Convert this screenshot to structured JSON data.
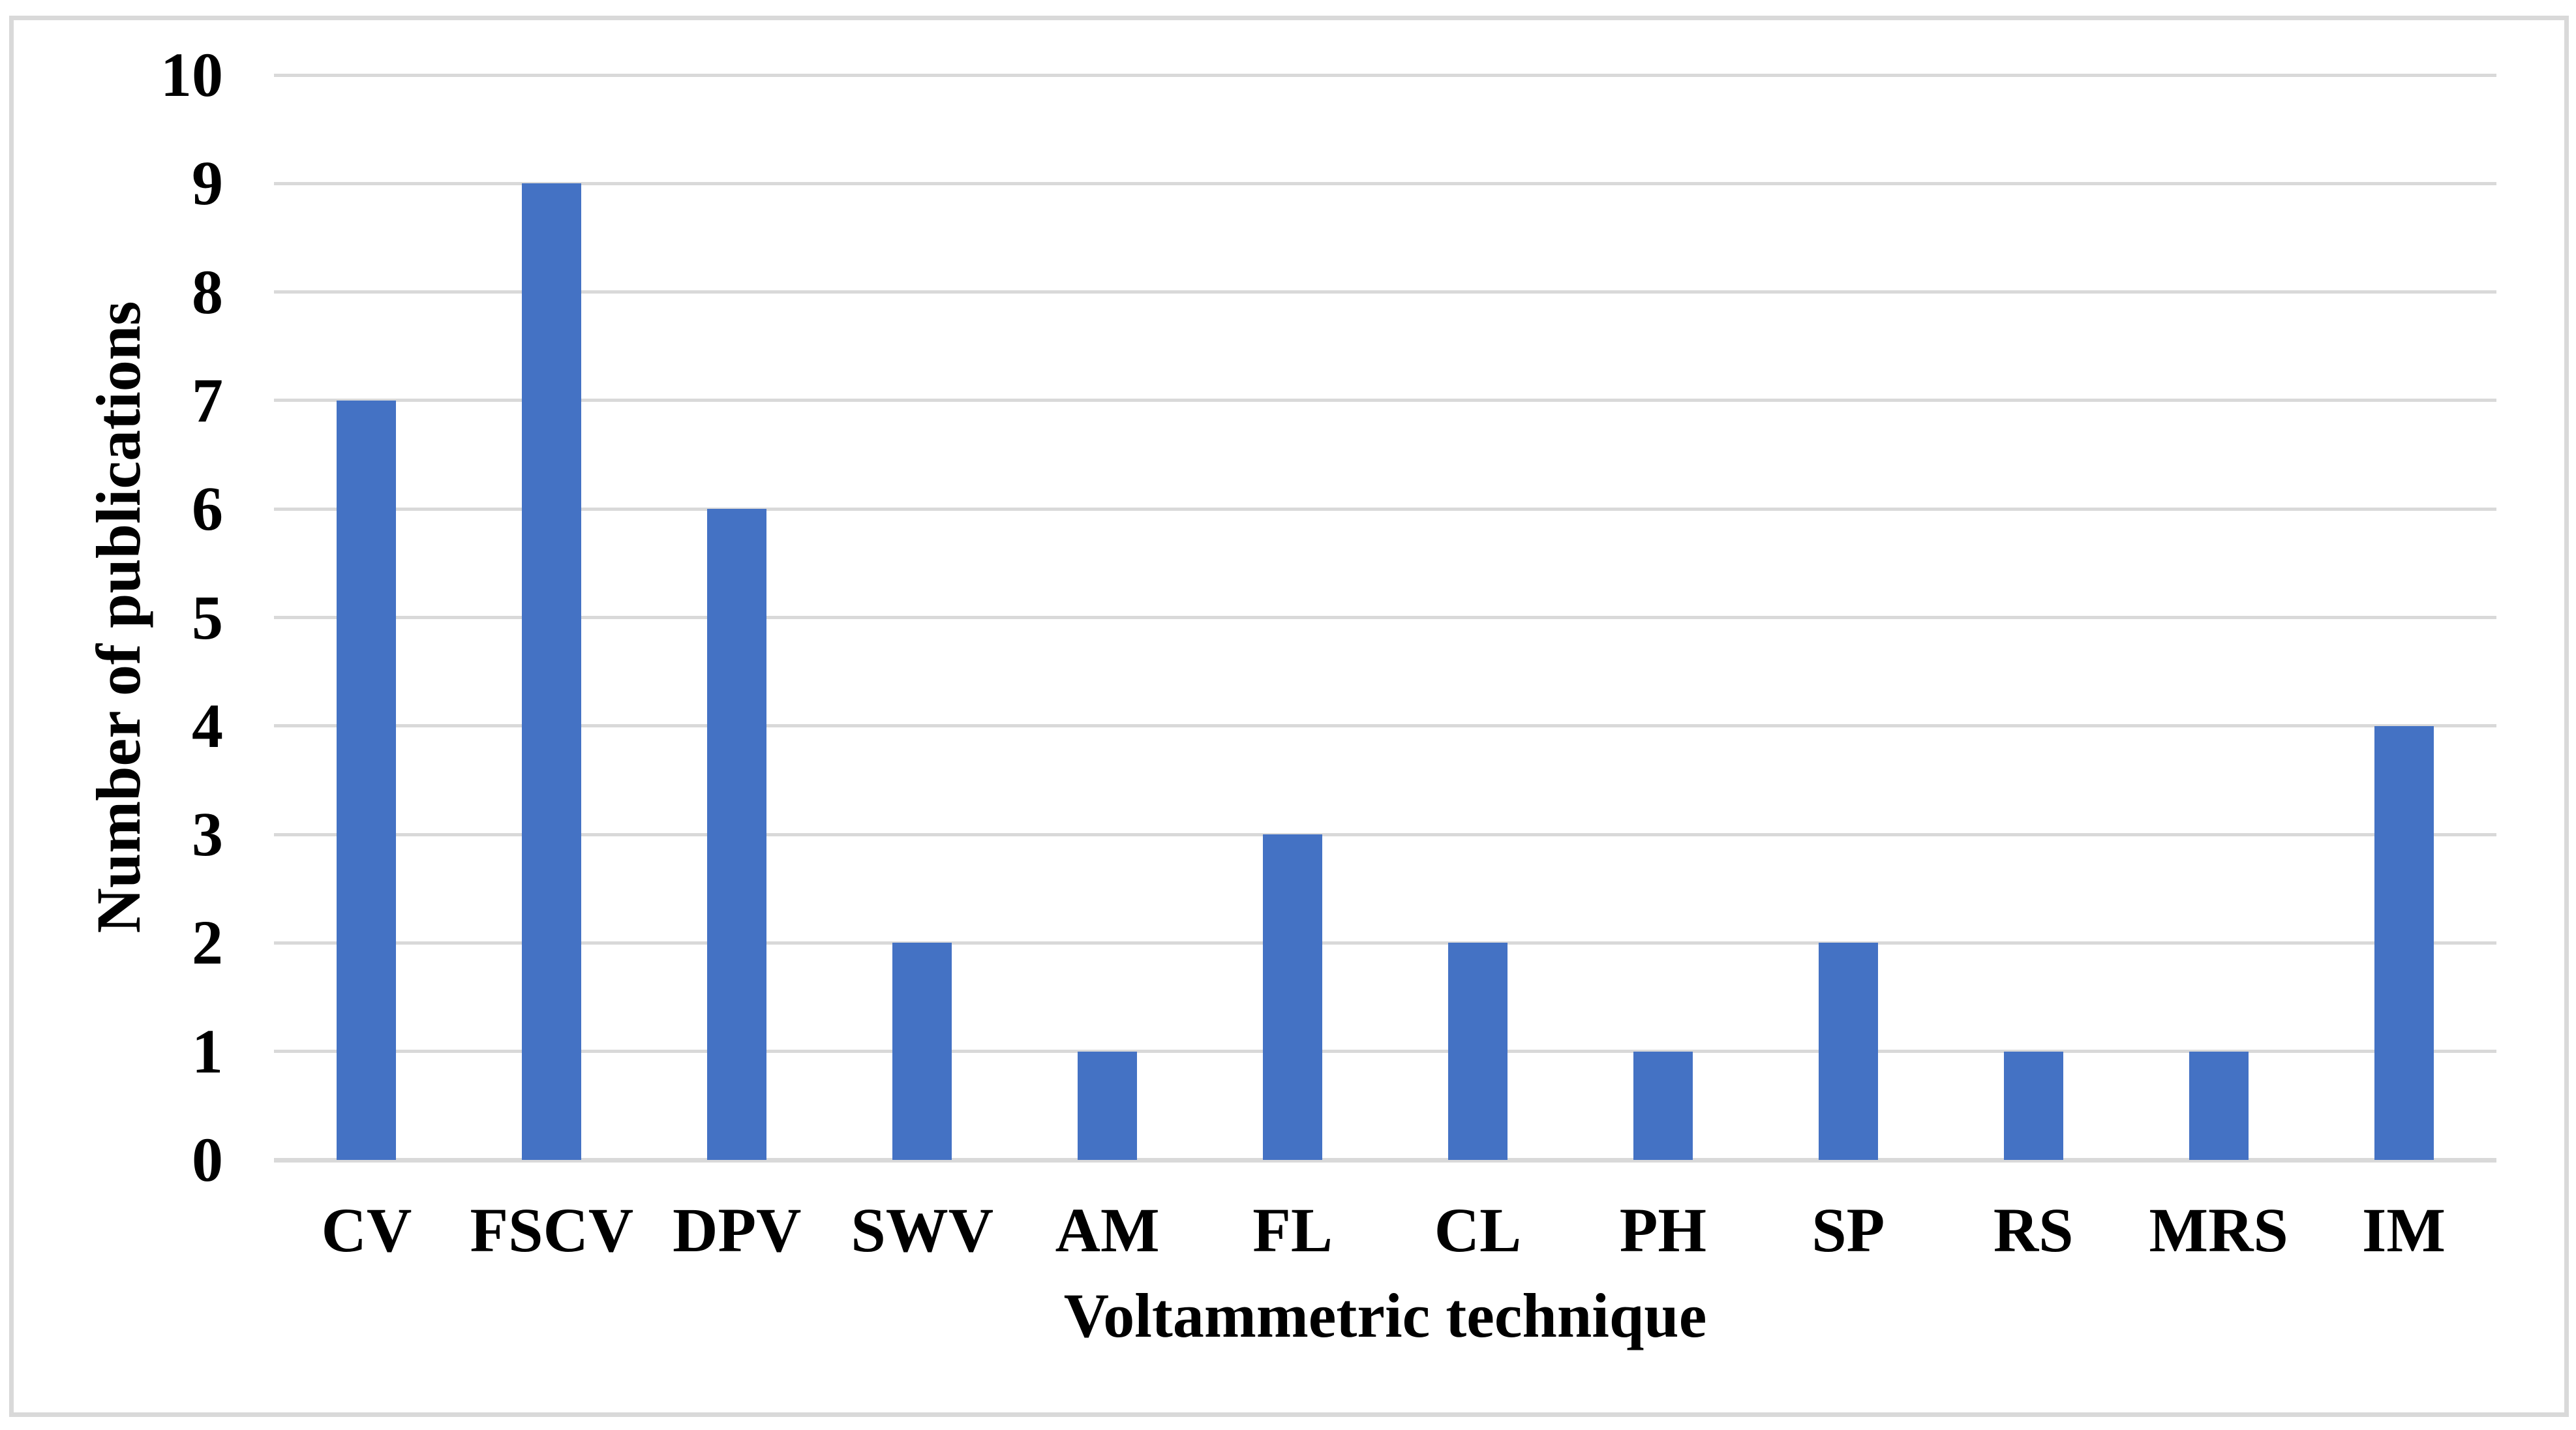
{
  "figure": {
    "background": "#FFFFFF",
    "border_color": "#D9D9D9"
  },
  "chart_data": {
    "type": "bar",
    "title": "",
    "categories": [
      "CV",
      "FSCV",
      "DPV",
      "SWV",
      "AM",
      "FL",
      "CL",
      "PH",
      "SP",
      "RS",
      "MRS",
      "IM"
    ],
    "values": [
      7,
      9,
      6,
      2,
      1,
      3,
      2,
      1,
      2,
      1,
      1,
      4
    ],
    "xlabel": "Voltammetric technique",
    "ylabel": "Number of publications",
    "ylim": [
      0,
      10
    ],
    "yticks": [
      0,
      1,
      2,
      3,
      4,
      5,
      6,
      7,
      8,
      9,
      10
    ],
    "grid": "horizontal",
    "legend": "none",
    "bar_color": "#4472C4",
    "gridline_color": "#D9D9D9",
    "text_color": "#000000"
  }
}
